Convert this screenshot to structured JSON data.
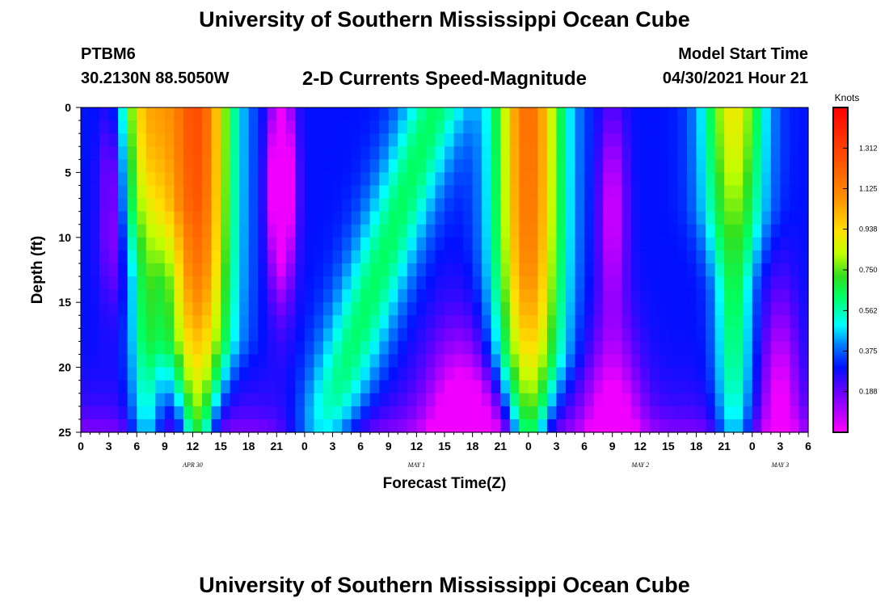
{
  "header": {
    "title": "University of Southern Mississippi Ocean Cube",
    "station": "PTBM6",
    "coordinates": "30.2130N  88.5050W",
    "subtitle": "2-D Currents Speed-Magnitude",
    "model_start_label": "Model Start Time",
    "model_start_value": "04/30/2021 Hour 21"
  },
  "footer": {
    "title": "University of Southern Mississippi Ocean Cube"
  },
  "chart_data": {
    "type": "heatmap",
    "xlabel": "Forecast Time(Z)",
    "ylabel": "Depth (ft)",
    "x_range_hours": [
      0,
      78
    ],
    "x_tick_labels": [
      "0",
      "3",
      "6",
      "9",
      "12",
      "15",
      "18",
      "21",
      "0",
      "3",
      "6",
      "9",
      "12",
      "15",
      "18",
      "21",
      "0",
      "3",
      "6",
      "9",
      "12",
      "15",
      "18",
      "21",
      "0",
      "3",
      "6"
    ],
    "date_labels": [
      {
        "label": "APR 30",
        "hour": 12
      },
      {
        "label": "MAY 1",
        "hour": 36
      },
      {
        "label": "MAY 2",
        "hour": 60
      },
      {
        "label": "MAY 3",
        "hour": 75
      }
    ],
    "y_range": [
      0,
      25
    ],
    "y_ticks": [
      0,
      5,
      10,
      15,
      20,
      25
    ],
    "y_inverted": true,
    "colorbar": {
      "title": "Knots",
      "range": [
        0,
        1.5
      ],
      "ticks": [
        0.188,
        0.375,
        0.562,
        0.75,
        0.938,
        1.125,
        1.312
      ],
      "tick_labels": [
        "0.188",
        "0.375",
        "0.562",
        "0.750",
        "0.938",
        "1.125",
        "1.312"
      ]
    },
    "field_description_hours": {
      "strong_cores": [
        {
          "center_hour": 12.5,
          "peak_knots": 1.35
        },
        {
          "center_hour": 7,
          "peak_knots": 1.0
        },
        {
          "center_hour": 48,
          "peak_knots": 1.25
        },
        {
          "center_hour": 70,
          "peak_knots": 1.0
        }
      ],
      "weak_minima": [
        {
          "center_hour": 3.5,
          "min_knots": 0.1
        },
        {
          "center_hour": 21.5,
          "min_knots": 0.05
        },
        {
          "center_hour": 41,
          "min_knots": 0.05
        },
        {
          "center_hour": 57,
          "min_knots": 0.1
        },
        {
          "center_hour": 75,
          "min_knots": 0.1
        }
      ]
    }
  }
}
